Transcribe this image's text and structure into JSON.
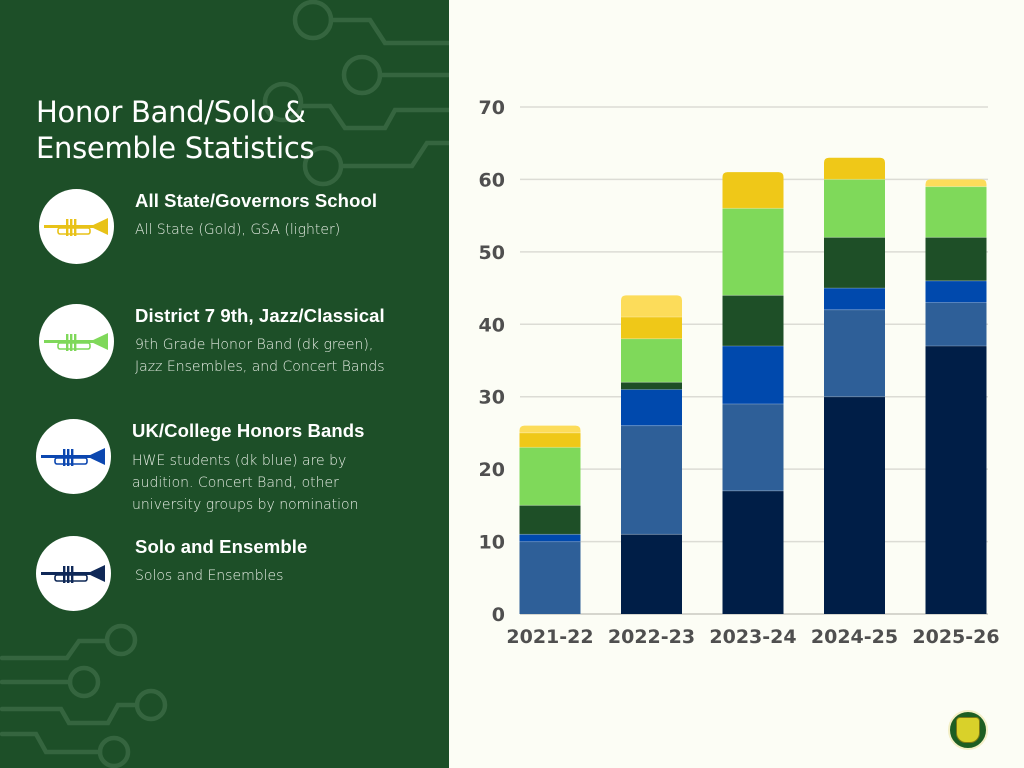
{
  "title_line1": "Honor Band/Solo &",
  "title_line2": "Ensemble Statistics",
  "legend_items": [
    {
      "title": "All State/Governors School",
      "description": "All State (Gold), GSA (lighter)",
      "icon": "trumpet-icon",
      "icon_color": "#e8c218"
    },
    {
      "title": "District 7 9th, Jazz/Classical",
      "description": "9th Grade Honor Band (dk green), Jazz Ensembles, and Concert Bands",
      "icon": "trumpet-icon",
      "icon_color": "#7fd85a"
    },
    {
      "title": "UK/College Honors Bands",
      "description": "HWE students (dk blue) are by audition. Concert Band, other university groups by nomination",
      "icon": "trumpet-icon",
      "icon_color": "#0c47b0"
    },
    {
      "title": "Solo and Ensemble",
      "description": "Solos and Ensembles",
      "icon": "trumpet-icon",
      "icon_color": "#0f2857"
    }
  ],
  "colors": {
    "panel_bg": "#1d4f28",
    "chart_bg": "#fcfdf5"
  },
  "chart_data": {
    "type": "bar",
    "stacked": true,
    "title": "",
    "xlabel": "",
    "ylabel": "",
    "categories": [
      "2021-22",
      "2022-23",
      "2023-24",
      "2024-25",
      "2025-26"
    ],
    "ylim": [
      0,
      70
    ],
    "yticks": [
      0,
      10,
      20,
      30,
      40,
      50,
      60,
      70
    ],
    "grid": true,
    "legend": "none",
    "series": [
      {
        "name": "Solo and Ensemble",
        "color": "#001e47",
        "values": [
          0,
          11,
          17,
          30,
          37
        ]
      },
      {
        "name": "UK/College Concert Band & other university groups",
        "color": "#2e5f98",
        "values": [
          10,
          15,
          12,
          12,
          6
        ]
      },
      {
        "name": "UK HWE (dk blue)",
        "color": "#0049ad",
        "values": [
          1,
          5,
          8,
          3,
          3
        ]
      },
      {
        "name": "9th Grade Honor Band (dk green)",
        "color": "#1e4f27",
        "values": [
          4,
          1,
          7,
          7,
          6
        ]
      },
      {
        "name": "Jazz Ensembles and Concert Bands",
        "color": "#7fd95a",
        "values": [
          8,
          6,
          12,
          8,
          7
        ]
      },
      {
        "name": "All State (Gold)",
        "color": "#efc818",
        "values": [
          2,
          3,
          5,
          3,
          0
        ]
      },
      {
        "name": "GSA (lighter)",
        "color": "#fcdc5a",
        "values": [
          1,
          3,
          0,
          0,
          1
        ]
      }
    ],
    "totals": [
      26,
      44,
      61,
      63,
      60
    ]
  }
}
